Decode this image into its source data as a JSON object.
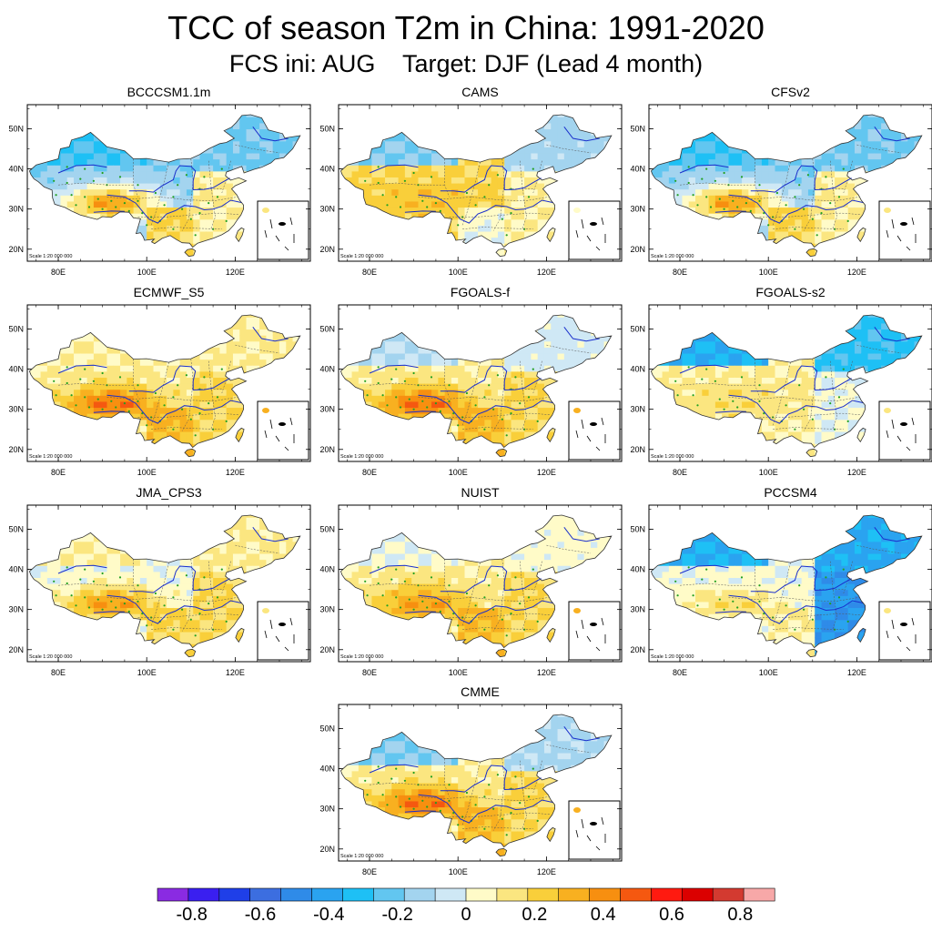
{
  "title": "TCC of season T2m in China: 1991-2020",
  "subtitle": "FCS ini: AUG    Target: DJF (Lead 4 month)",
  "scale_text": "Scale 1:20 000 000",
  "chart_data": {
    "type": "map-panels",
    "lon_ticks": [
      "80E",
      "100E",
      "120E"
    ],
    "lat_ticks": [
      "50N",
      "40N",
      "30N",
      "20N"
    ],
    "lon_range": [
      73,
      137
    ],
    "lat_range": [
      17,
      56
    ],
    "panels": [
      {
        "name": "BCCCSM1.1m",
        "north": -0.2,
        "west": -0.1,
        "tibet": 0.5,
        "south": 0.3,
        "east": 0.2
      },
      {
        "name": "CAMS",
        "north": -0.1,
        "west": 0.3,
        "tibet": 0.4,
        "south": 0.1,
        "east": 0.2
      },
      {
        "name": "CFSv2",
        "north": -0.2,
        "west": -0.1,
        "tibet": 0.5,
        "south": 0.3,
        "east": 0.2
      },
      {
        "name": "ECMWF_S5",
        "north": 0.2,
        "west": 0.2,
        "tibet": 0.6,
        "south": 0.4,
        "east": 0.3
      },
      {
        "name": "FGOALS-f",
        "north": 0.0,
        "west": 0.2,
        "tibet": 0.6,
        "south": 0.4,
        "east": 0.3
      },
      {
        "name": "FGOALS-s2",
        "north": -0.3,
        "west": 0.2,
        "tibet": 0.3,
        "south": 0.2,
        "east": 0.1
      },
      {
        "name": "JMA_CPS3",
        "north": 0.2,
        "west": 0.1,
        "tibet": 0.5,
        "south": 0.3,
        "east": 0.3
      },
      {
        "name": "NUIST",
        "north": 0.1,
        "west": 0.2,
        "tibet": 0.5,
        "south": 0.4,
        "east": 0.3
      },
      {
        "name": "PCCSM4",
        "north": -0.3,
        "west": 0.1,
        "tibet": 0.3,
        "south": 0.2,
        "east": -0.4
      },
      {
        "name": "CMME",
        "north": -0.1,
        "west": 0.2,
        "tibet": 0.6,
        "south": 0.4,
        "east": 0.3
      }
    ],
    "colorbar": {
      "ticks": [
        "-0.8",
        "-0.6",
        "-0.4",
        "-0.2",
        "0",
        "0.2",
        "0.4",
        "0.6",
        "0.8"
      ],
      "tick_values": [
        -0.8,
        -0.6,
        -0.4,
        -0.2,
        0,
        0.2,
        0.4,
        0.6,
        0.8
      ],
      "bounds": [
        -0.9,
        0.9
      ],
      "step": 0.1,
      "colors": [
        "#8a2be2",
        "#3a1ff0",
        "#1f3fe8",
        "#3c6ee0",
        "#2f8be8",
        "#2aa3f0",
        "#1ec0f5",
        "#62c6f0",
        "#a3d4ef",
        "#cfe8f5",
        "#fffbc8",
        "#fbe680",
        "#f9cf3a",
        "#f8b020",
        "#f78f10",
        "#f55810",
        "#ff1a10",
        "#db0000",
        "#d33a30",
        "#f7a8a8"
      ]
    }
  }
}
